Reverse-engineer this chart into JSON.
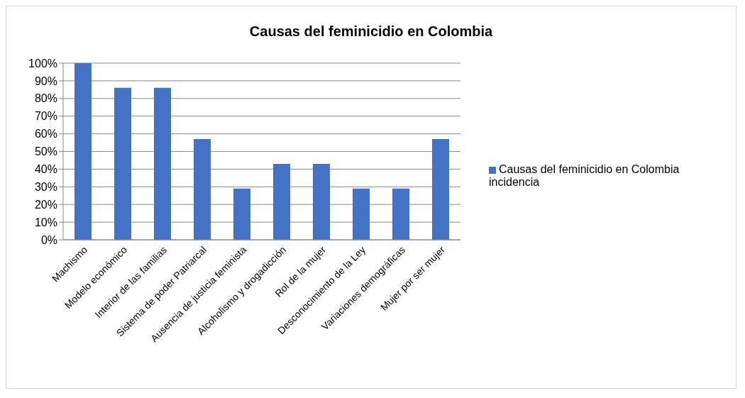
{
  "chart_data": {
    "type": "bar",
    "title": "Causas del feminicidio en Colombia",
    "categories": [
      "Machismo",
      "Modelo económico",
      "Interior de las familias",
      "Sistema de poder Patriarcal",
      "Ausencia de justicia feminista",
      "Alcoholismo y drogadicción",
      "Rol de la mujer",
      "Desconocimiento de la Ley",
      "Variaciones demográficas",
      "Mujer por ser mujer"
    ],
    "series": [
      {
        "name": "Causas del feminicidio en Colombia incidencia",
        "color": "#4472c4",
        "values": [
          100,
          86,
          86,
          57,
          29,
          43,
          43,
          29,
          29,
          57
        ]
      }
    ],
    "ylim": [
      0,
      100
    ],
    "yticks": [
      {
        "value": 0,
        "label": "0%"
      },
      {
        "value": 10,
        "label": "10%"
      },
      {
        "value": 20,
        "label": "20%"
      },
      {
        "value": 30,
        "label": "30%"
      },
      {
        "value": 40,
        "label": "40%"
      },
      {
        "value": 50,
        "label": "50%"
      },
      {
        "value": 60,
        "label": "60%"
      },
      {
        "value": 70,
        "label": "70%"
      },
      {
        "value": 80,
        "label": "80%"
      },
      {
        "value": 90,
        "label": "90%"
      },
      {
        "value": 100,
        "label": "100%"
      }
    ],
    "grid": "y",
    "legend": "right"
  }
}
